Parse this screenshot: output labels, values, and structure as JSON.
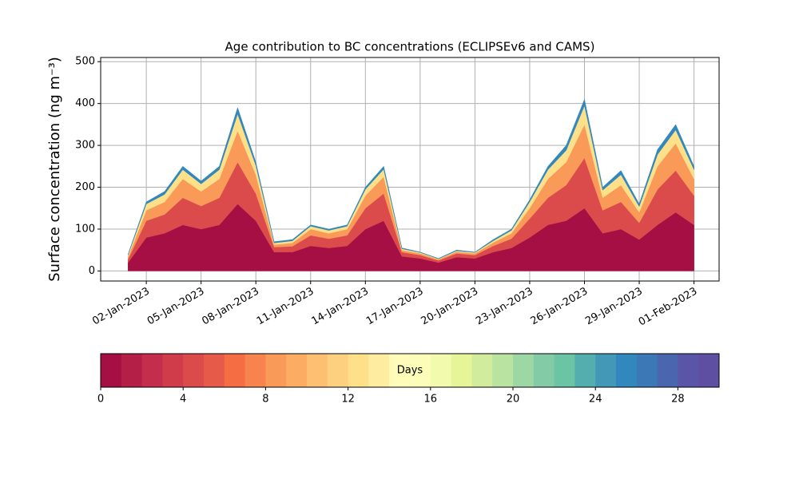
{
  "chart_data": {
    "type": "stacked_area",
    "title": "Age contribution to BC concentrations (ECLIPSEv6 and CAMS)",
    "ylabel": "Surface concentration (ng m⁻³)",
    "x": [
      "2023-01-01",
      "2023-01-02",
      "2023-01-03",
      "2023-01-04",
      "2023-01-05",
      "2023-01-06",
      "2023-01-07",
      "2023-01-08",
      "2023-01-09",
      "2023-01-10",
      "2023-01-11",
      "2023-01-12",
      "2023-01-13",
      "2023-01-14",
      "2023-01-15",
      "2023-01-16",
      "2023-01-17",
      "2023-01-18",
      "2023-01-19",
      "2023-01-20",
      "2023-01-21",
      "2023-01-22",
      "2023-01-23",
      "2023-01-24",
      "2023-01-25",
      "2023-01-26",
      "2023-01-27",
      "2023-01-28",
      "2023-01-29",
      "2023-01-30",
      "2023-01-31",
      "2023-02-01"
    ],
    "series": [
      {
        "color": "#a50f44",
        "values": [
          20,
          80,
          90,
          110,
          100,
          110,
          160,
          120,
          45,
          45,
          60,
          55,
          60,
          100,
          120,
          35,
          30,
          20,
          33,
          30,
          45,
          55,
          80,
          110,
          120,
          150,
          90,
          100,
          75,
          110,
          140,
          110
        ]
      },
      {
        "color": "#dc4b4b",
        "values": [
          8,
          40,
          45,
          65,
          55,
          65,
          100,
          65,
          12,
          14,
          25,
          22,
          25,
          50,
          65,
          10,
          8,
          5,
          9,
          8,
          15,
          22,
          45,
          65,
          85,
          120,
          55,
          65,
          40,
          85,
          100,
          70
        ]
      },
      {
        "color": "#f99a59",
        "values": [
          6,
          25,
          30,
          45,
          35,
          45,
          75,
          45,
          6,
          8,
          15,
          13,
          15,
          30,
          40,
          5,
          4,
          3,
          4,
          4,
          8,
          13,
          25,
          45,
          55,
          80,
          30,
          40,
          25,
          55,
          65,
          40
        ]
      },
      {
        "color": "#fee08b",
        "values": [
          4,
          15,
          18,
          22,
          18,
          22,
          40,
          22,
          4,
          5,
          7,
          7,
          7,
          15,
          18,
          3,
          2,
          1,
          2,
          2,
          4,
          7,
          15,
          22,
          28,
          45,
          18,
          25,
          14,
          28,
          32,
          22
        ]
      },
      {
        "color": "#3288bd",
        "values": [
          2,
          5,
          7,
          8,
          7,
          8,
          15,
          8,
          3,
          3,
          3,
          3,
          3,
          5,
          7,
          2,
          1,
          1,
          2,
          1,
          3,
          3,
          5,
          8,
          12,
          15,
          7,
          10,
          6,
          12,
          13,
          8
        ]
      }
    ],
    "xlim": [
      "2022-12-30T12:00",
      "2023-02-02T09:00"
    ],
    "xticks": [
      {
        "value": "2023-01-02",
        "label": "02-Jan-2023"
      },
      {
        "value": "2023-01-05",
        "label": "05-Jan-2023"
      },
      {
        "value": "2023-01-08",
        "label": "08-Jan-2023"
      },
      {
        "value": "2023-01-11",
        "label": "11-Jan-2023"
      },
      {
        "value": "2023-01-14",
        "label": "14-Jan-2023"
      },
      {
        "value": "2023-01-17",
        "label": "17-Jan-2023"
      },
      {
        "value": "2023-01-20",
        "label": "20-Jan-2023"
      },
      {
        "value": "2023-01-23",
        "label": "23-Jan-2023"
      },
      {
        "value": "2023-01-26",
        "label": "26-Jan-2023"
      },
      {
        "value": "2023-01-29",
        "label": "29-Jan-2023"
      },
      {
        "value": "2023-02-01",
        "label": "01-Feb-2023"
      }
    ],
    "ylim": [
      -24,
      510
    ],
    "yticks": [
      0,
      100,
      200,
      300,
      400,
      500
    ],
    "grid": true,
    "colorbar": {
      "label": "Days",
      "lim": [
        0,
        30
      ],
      "ticks": [
        0,
        4,
        8,
        12,
        16,
        20,
        24,
        28
      ],
      "colors": [
        "#a50f44",
        "#b41f48",
        "#c42d4b",
        "#d13c4b",
        "#dc4b4b",
        "#e55a48",
        "#f46d43",
        "#f7844e",
        "#f99a59",
        "#fcac63",
        "#fdbf71",
        "#fdd07f",
        "#fee08b",
        "#feeda0",
        "#fffbb8",
        "#fbfdb9",
        "#f2faae",
        "#e6f598",
        "#d1ec9c",
        "#b9e3a1",
        "#9dd7a4",
        "#82cba6",
        "#6bc4a4",
        "#54aead",
        "#4298b6",
        "#3288bd",
        "#3c77b6",
        "#4a66ae",
        "#5a55a6",
        "#5e4fa2"
      ]
    }
  }
}
